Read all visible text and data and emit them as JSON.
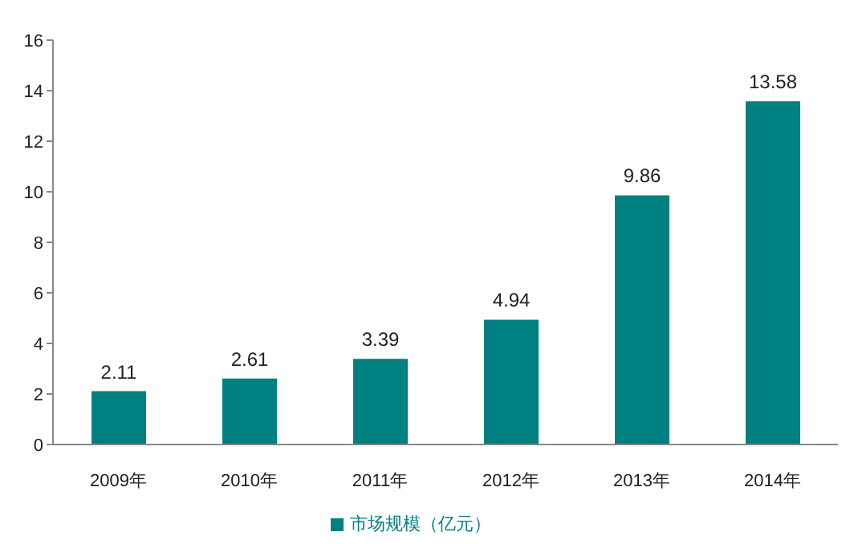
{
  "chart_data": {
    "type": "bar",
    "categories": [
      "2009年",
      "2010年",
      "2011年",
      "2012年",
      "2013年",
      "2014年"
    ],
    "series": [
      {
        "name": "市场规模（亿元）",
        "color": "#008080",
        "values": [
          2.11,
          2.61,
          3.39,
          4.94,
          9.86,
          13.58
        ]
      }
    ],
    "ylim": [
      0,
      16
    ],
    "yticks": [
      0,
      2,
      4,
      6,
      8,
      10,
      12,
      14,
      16
    ],
    "grid": false,
    "legend": "bottom",
    "data_labels": true
  }
}
